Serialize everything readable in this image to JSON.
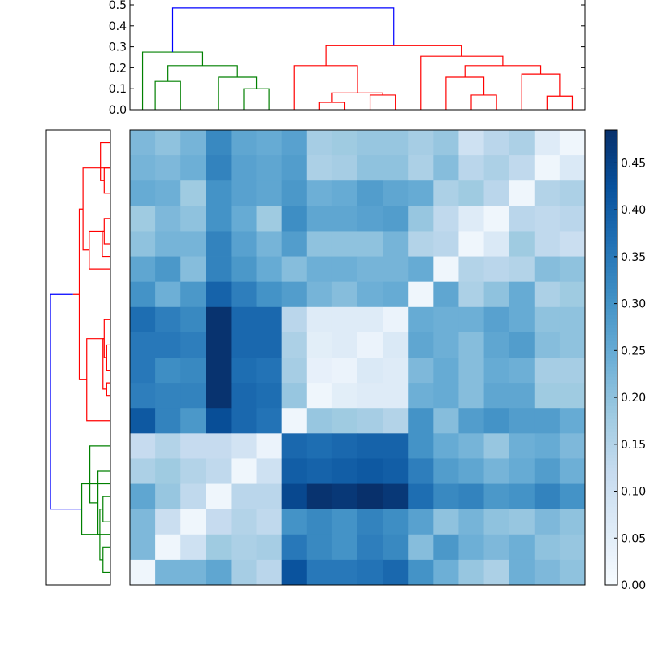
{
  "chart_data": {
    "type": "heatmap",
    "title": "",
    "n": 18,
    "dendrogram_colors": [
      "#008000",
      "#ff0000",
      "#0000ff"
    ],
    "top_dendrogram": {
      "ylim": [
        0,
        0.5
      ],
      "yticks": [
        "0.0",
        "0.1",
        "0.2",
        "0.3",
        "0.4",
        "0.5"
      ],
      "links": [
        {
          "a": 1.5,
          "b": 0.5,
          "h": 0.135,
          "c": 0
        },
        {
          "a": 5,
          "b": 4,
          "h": 0.1,
          "c": 0
        },
        {
          "a": 3,
          "b": 4.5,
          "h": 0.155,
          "c": 0
        },
        {
          "a": 1,
          "b": 3.75,
          "h": 0.21,
          "c": 0
        },
        {
          "a": 0,
          "b": 2.375,
          "h": 0.275,
          "c": 0
        },
        {
          "a": 7,
          "b": 8,
          "h": 0.035,
          "c": 1
        },
        {
          "a": 9,
          "b": 10,
          "h": 0.07,
          "c": 1
        },
        {
          "a": 7.5,
          "b": 9.5,
          "h": 0.08,
          "c": 1
        },
        {
          "a": 6,
          "b": 8.5,
          "h": 0.21,
          "c": 1
        },
        {
          "a": 13,
          "b": 14,
          "h": 0.07,
          "c": 1
        },
        {
          "a": 12,
          "b": 13.5,
          "h": 0.155,
          "c": 1
        },
        {
          "a": 16,
          "b": 17,
          "h": 0.065,
          "c": 1
        },
        {
          "a": 15,
          "b": 16.5,
          "h": 0.17,
          "c": 1
        },
        {
          "a": 12.75,
          "b": 15.75,
          "h": 0.21,
          "c": 1
        },
        {
          "a": 11,
          "b": 14.25,
          "h": 0.255,
          "c": 1
        },
        {
          "a": 7.25,
          "b": 12.625,
          "h": 0.305,
          "c": 1
        },
        {
          "a": 1.1875,
          "b": 9.9375,
          "h": 0.485,
          "c": 2
        }
      ]
    },
    "left_dendrogram": {
      "links": [
        {
          "a": 17,
          "b": 16,
          "h": 0.06,
          "c": 0
        },
        {
          "a": 15,
          "b": 14,
          "h": 0.06,
          "c": 0
        },
        {
          "a": 15.5,
          "b": 13,
          "h": 0.1,
          "c": 0
        },
        {
          "a": 16.5,
          "b": 14.5,
          "h": 0.085,
          "c": 0
        },
        {
          "a": 14.25,
          "b": 12,
          "h": 0.165,
          "c": 0
        },
        {
          "a": 15.5,
          "b": 13.5,
          "h": 0.23,
          "c": 0
        },
        {
          "a": 2,
          "b": 1,
          "h": 0.05,
          "c": 1
        },
        {
          "a": 1.5,
          "b": 0,
          "h": 0.08,
          "c": 1
        },
        {
          "a": 4,
          "b": 3,
          "h": 0.05,
          "c": 1
        },
        {
          "a": 4.5,
          "b": 3.5,
          "h": 0.065,
          "c": 1
        },
        {
          "a": 3.5,
          "b": 5,
          "h": 0.17,
          "c": 1
        },
        {
          "a": 1,
          "b": 4.25,
          "h": 0.22,
          "c": 1
        },
        {
          "a": 9,
          "b": 8,
          "h": 0.03,
          "c": 1
        },
        {
          "a": 8.5,
          "b": 7,
          "h": 0.05,
          "c": 1
        },
        {
          "a": 10,
          "b": 9.5,
          "h": 0.03,
          "c": 1
        },
        {
          "a": 9.75,
          "b": 7.75,
          "h": 0.06,
          "c": 1
        },
        {
          "a": 7.75,
          "b": 11,
          "h": 0.19,
          "c": 1
        },
        {
          "a": 2.625,
          "b": 9.375,
          "h": 0.25,
          "c": 1
        },
        {
          "a": 6,
          "b": 6,
          "h": 0.3,
          "c": 1
        },
        {
          "a": 6,
          "b": 14.5,
          "h": 0.48,
          "c": 2
        }
      ]
    },
    "colorbar": {
      "vmin": 0.0,
      "vmax": 0.485,
      "ticks": [
        0.0,
        0.05,
        0.1,
        0.15,
        0.2,
        0.25,
        0.3,
        0.35,
        0.4,
        0.45
      ],
      "tick_labels": [
        "0.00",
        "0.05",
        "0.10",
        "0.15",
        "0.20",
        "0.25",
        "0.30",
        "0.35",
        "0.40",
        "0.45"
      ]
    },
    "matrix": [
      [
        0.22,
        0.2,
        0.23,
        0.32,
        0.26,
        0.25,
        0.27,
        0.17,
        0.18,
        0.19,
        0.19,
        0.17,
        0.19,
        0.1,
        0.14,
        0.16,
        0.06,
        0.02
      ],
      [
        0.23,
        0.22,
        0.24,
        0.33,
        0.27,
        0.26,
        0.28,
        0.16,
        0.17,
        0.2,
        0.2,
        0.16,
        0.21,
        0.14,
        0.16,
        0.13,
        0.02,
        0.07
      ],
      [
        0.25,
        0.24,
        0.18,
        0.3,
        0.27,
        0.26,
        0.29,
        0.24,
        0.25,
        0.28,
        0.26,
        0.25,
        0.16,
        0.18,
        0.14,
        0.02,
        0.15,
        0.16
      ],
      [
        0.18,
        0.22,
        0.2,
        0.3,
        0.25,
        0.18,
        0.31,
        0.26,
        0.26,
        0.27,
        0.28,
        0.19,
        0.13,
        0.06,
        0.02,
        0.14,
        0.13,
        0.14
      ],
      [
        0.2,
        0.23,
        0.23,
        0.33,
        0.27,
        0.23,
        0.28,
        0.2,
        0.2,
        0.2,
        0.23,
        0.15,
        0.14,
        0.02,
        0.07,
        0.18,
        0.13,
        0.11
      ],
      [
        0.26,
        0.29,
        0.21,
        0.33,
        0.29,
        0.25,
        0.21,
        0.24,
        0.24,
        0.23,
        0.23,
        0.25,
        0.02,
        0.15,
        0.14,
        0.15,
        0.21,
        0.2
      ],
      [
        0.3,
        0.24,
        0.29,
        0.39,
        0.34,
        0.3,
        0.28,
        0.23,
        0.21,
        0.24,
        0.25,
        0.02,
        0.26,
        0.16,
        0.2,
        0.25,
        0.16,
        0.18
      ],
      [
        0.37,
        0.34,
        0.32,
        0.48,
        0.38,
        0.38,
        0.14,
        0.06,
        0.06,
        0.06,
        0.03,
        0.25,
        0.24,
        0.24,
        0.27,
        0.25,
        0.2,
        0.2
      ],
      [
        0.35,
        0.35,
        0.34,
        0.48,
        0.38,
        0.38,
        0.16,
        0.05,
        0.06,
        0.03,
        0.07,
        0.26,
        0.24,
        0.21,
        0.26,
        0.28,
        0.21,
        0.2
      ],
      [
        0.35,
        0.31,
        0.32,
        0.48,
        0.37,
        0.36,
        0.17,
        0.04,
        0.03,
        0.07,
        0.06,
        0.22,
        0.25,
        0.21,
        0.25,
        0.24,
        0.17,
        0.17
      ],
      [
        0.34,
        0.33,
        0.33,
        0.48,
        0.38,
        0.37,
        0.19,
        0.02,
        0.05,
        0.06,
        0.06,
        0.24,
        0.25,
        0.21,
        0.26,
        0.26,
        0.18,
        0.18
      ],
      [
        0.41,
        0.33,
        0.29,
        0.43,
        0.38,
        0.36,
        0.02,
        0.19,
        0.18,
        0.17,
        0.15,
        0.3,
        0.21,
        0.28,
        0.3,
        0.28,
        0.28,
        0.25
      ],
      [
        0.12,
        0.15,
        0.12,
        0.12,
        0.09,
        0.03,
        0.38,
        0.37,
        0.38,
        0.39,
        0.39,
        0.3,
        0.25,
        0.23,
        0.19,
        0.24,
        0.25,
        0.22
      ],
      [
        0.16,
        0.18,
        0.15,
        0.13,
        0.02,
        0.1,
        0.4,
        0.39,
        0.4,
        0.41,
        0.4,
        0.34,
        0.28,
        0.26,
        0.23,
        0.25,
        0.28,
        0.24
      ],
      [
        0.26,
        0.19,
        0.13,
        0.02,
        0.14,
        0.14,
        0.44,
        0.48,
        0.47,
        0.49,
        0.47,
        0.37,
        0.32,
        0.33,
        0.29,
        0.3,
        0.33,
        0.3
      ],
      [
        0.22,
        0.11,
        0.02,
        0.12,
        0.15,
        0.13,
        0.3,
        0.32,
        0.3,
        0.33,
        0.31,
        0.27,
        0.2,
        0.23,
        0.2,
        0.19,
        0.22,
        0.2
      ],
      [
        0.22,
        0.02,
        0.1,
        0.18,
        0.16,
        0.17,
        0.35,
        0.32,
        0.3,
        0.34,
        0.32,
        0.21,
        0.29,
        0.24,
        0.22,
        0.24,
        0.2,
        0.19
      ],
      [
        0.02,
        0.23,
        0.23,
        0.26,
        0.17,
        0.14,
        0.42,
        0.35,
        0.35,
        0.36,
        0.38,
        0.3,
        0.24,
        0.19,
        0.16,
        0.24,
        0.22,
        0.2
      ]
    ]
  }
}
